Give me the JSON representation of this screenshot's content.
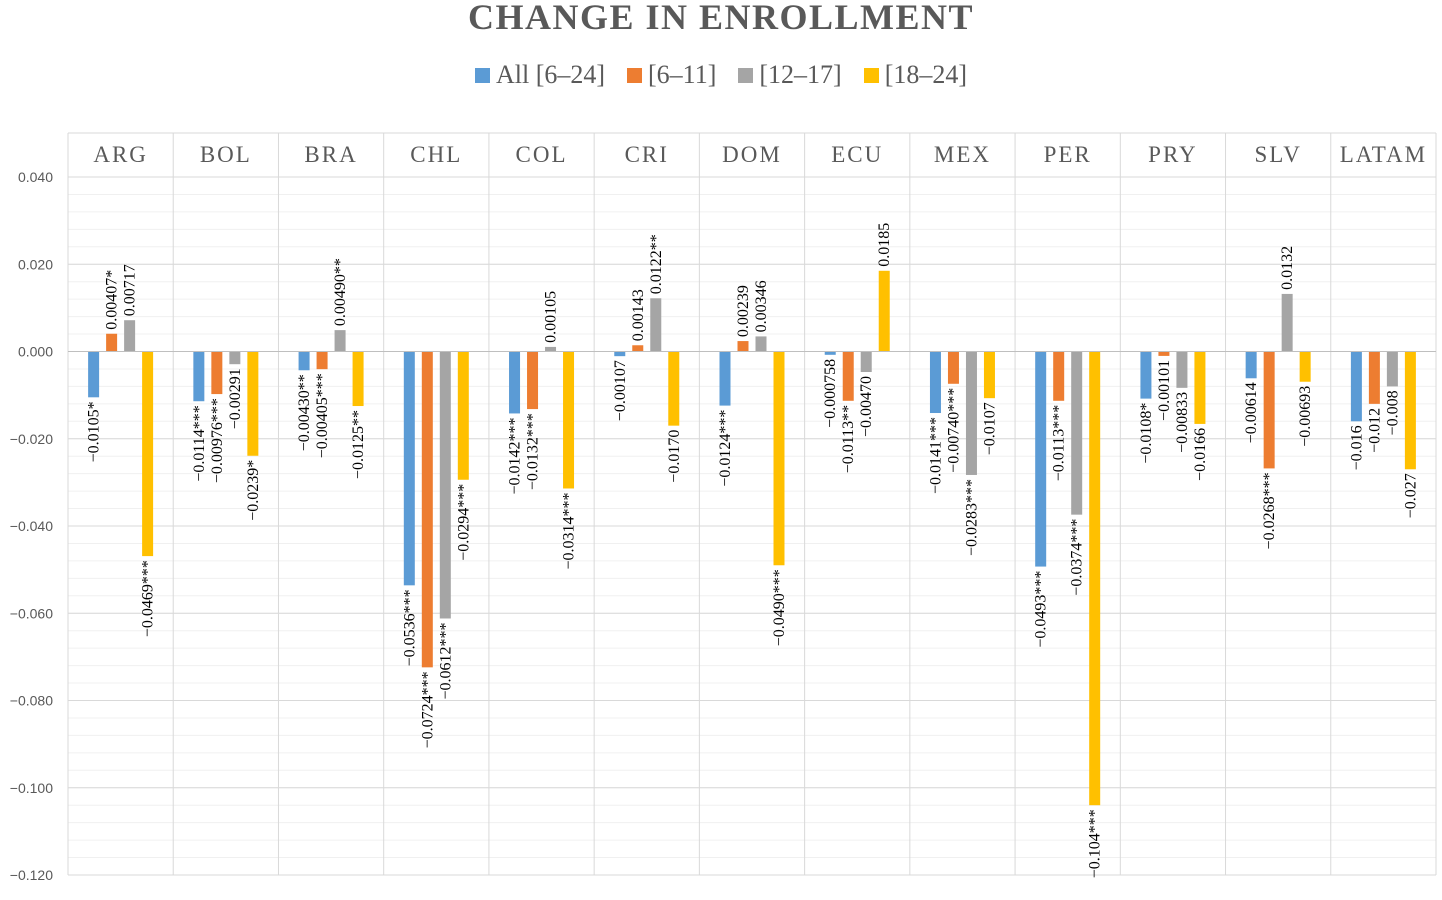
{
  "chart_data": {
    "type": "bar",
    "title": "CHANGE IN ENROLLMENT",
    "categories": [
      "ARG",
      "BOL",
      "BRA",
      "CHL",
      "COL",
      "CRI",
      "DOM",
      "ECU",
      "MEX",
      "PER",
      "PRY",
      "SLV",
      "LATAM"
    ],
    "ylim": [
      -0.12,
      0.04
    ],
    "yticks": [
      {
        "value": 0.04,
        "label": "0.040"
      },
      {
        "value": 0.02,
        "label": "0.020"
      },
      {
        "value": 0.0,
        "label": "0.000"
      },
      {
        "value": -0.02,
        "label": "−0.020"
      },
      {
        "value": -0.04,
        "label": "−0.040"
      },
      {
        "value": -0.06,
        "label": "−0.060"
      },
      {
        "value": -0.08,
        "label": "−0.080"
      },
      {
        "value": -0.1,
        "label": "−0.100"
      },
      {
        "value": -0.12,
        "label": "−0.120"
      }
    ],
    "grid": true,
    "legend_position": "top",
    "series": [
      {
        "name": "All [6–24]",
        "color": "#5B9BD5",
        "values": [
          -0.0105,
          -0.0114,
          -0.0043,
          -0.0536,
          -0.0142,
          -0.00107,
          -0.0124,
          -0.000758,
          -0.0141,
          -0.0493,
          -0.0108,
          -0.00614,
          -0.016
        ],
        "labels": [
          "−0.0105*",
          "−0.0114***",
          "−0.00430**",
          "−0.0536***",
          "−0.0142***",
          "−0.00107",
          "−0.0124***",
          "−0.000758",
          "−0.0141***",
          "−0.0493***",
          "−0.0108*",
          "−0.00614",
          "−0.016"
        ]
      },
      {
        "name": "[6–11]",
        "color": "#ED7D31",
        "values": [
          0.00407,
          -0.00976,
          -0.00405,
          -0.0724,
          -0.0132,
          0.00143,
          0.00239,
          -0.0113,
          -0.0074,
          -0.0113,
          -0.00101,
          -0.0268,
          -0.012
        ],
        "labels": [
          "0.00407*",
          "−0.00976***",
          "−0.00405***",
          "−0.0724***",
          "−0.0132***",
          "0.00143",
          "0.00239",
          "−0.0113**",
          "−0.00740***",
          "−0.0113***",
          "−0.00101",
          "−0.0268***",
          "−0.012"
        ]
      },
      {
        "name": "[12–17]",
        "color": "#A5A5A5",
        "values": [
          0.00717,
          -0.00291,
          0.0049,
          -0.0612,
          0.00105,
          0.0122,
          0.00346,
          -0.0047,
          -0.0283,
          -0.0374,
          -0.00833,
          0.0132,
          -0.008
        ],
        "labels": [
          "0.00717",
          "−0.00291",
          "0.00490**",
          "−0.0612***",
          "0.00105",
          "0.0122**",
          "0.00346",
          "−0.00470",
          "−0.0283***",
          "−0.0374***",
          "−0.00833",
          "0.0132",
          "−0.008"
        ]
      },
      {
        "name": "[18–24]",
        "color": "#FFC000",
        "values": [
          -0.0469,
          -0.0239,
          -0.0125,
          -0.0294,
          -0.0314,
          -0.017,
          -0.049,
          0.0185,
          -0.0107,
          -0.104,
          -0.0166,
          -0.00693,
          -0.027
        ],
        "labels": [
          "−0.0469***",
          "−0.0239*",
          "−0.0125**",
          "−0.0294***",
          "−0.0314***",
          "−0.0170",
          "−0.0490***",
          "0.0185",
          "−0.0107",
          "−0.104***",
          "−0.0166",
          "−0.00693",
          "−0.027"
        ]
      }
    ]
  }
}
